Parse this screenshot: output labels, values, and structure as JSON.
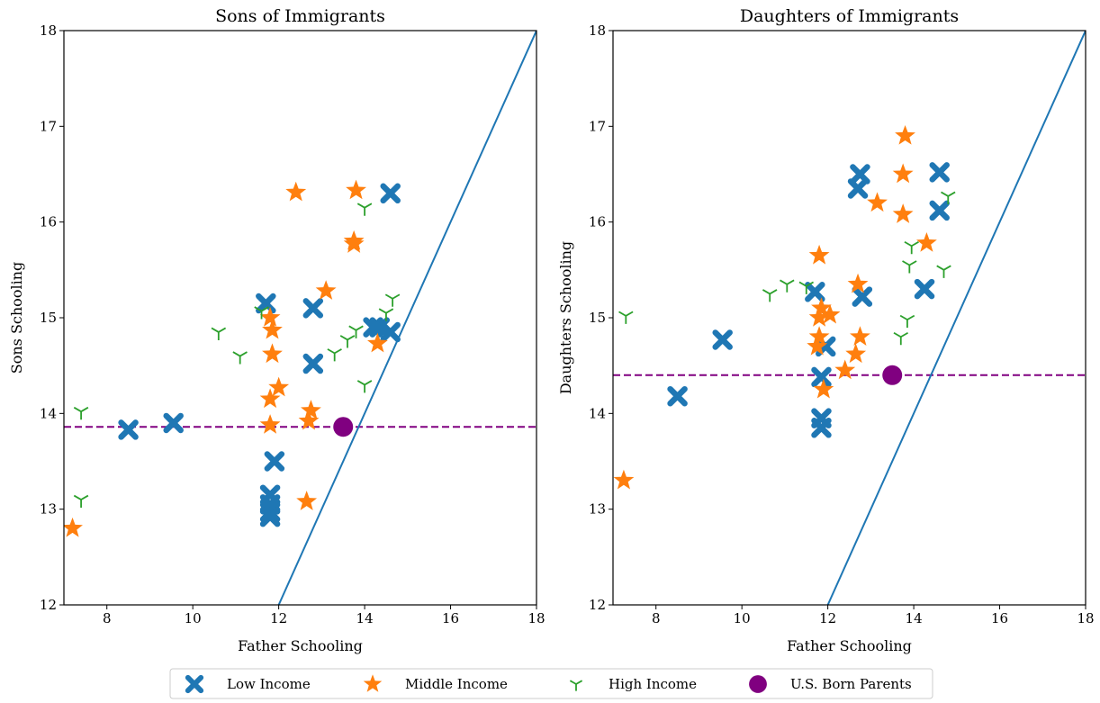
{
  "chart_data": [
    {
      "type": "scatter",
      "title": "Sons of Immigrants",
      "xlabel": "Father Schooling",
      "ylabel": "Sons Schooling",
      "xlim": [
        7,
        18
      ],
      "ylim": [
        12,
        18
      ],
      "xticks": [
        8,
        10,
        12,
        14,
        16,
        18
      ],
      "yticks": [
        12,
        13,
        14,
        15,
        16,
        17,
        18
      ],
      "grid": false,
      "reference_line": {
        "type": "line",
        "x": [
          12,
          18
        ],
        "y": [
          12,
          18
        ],
        "color": "#1f77b4"
      },
      "us_born_mean": {
        "x": 13.5,
        "y": 13.86,
        "color": "#800080"
      },
      "series": [
        {
          "name": "Low Income",
          "marker": "x-icon",
          "color": "#1f77b4",
          "points": [
            [
              8.5,
              13.83
            ],
            [
              9.55,
              13.9
            ],
            [
              11.7,
              15.15
            ],
            [
              11.8,
              13.15
            ],
            [
              11.8,
              13.05
            ],
            [
              11.8,
              12.97
            ],
            [
              11.8,
              12.92
            ],
            [
              11.9,
              13.5
            ],
            [
              12.8,
              15.1
            ],
            [
              12.8,
              14.52
            ],
            [
              14.2,
              14.9
            ],
            [
              14.35,
              14.9
            ],
            [
              14.6,
              14.85
            ],
            [
              14.6,
              16.3
            ]
          ]
        },
        {
          "name": "Middle Income",
          "marker": "star-icon",
          "color": "#ff7f0e",
          "points": [
            [
              7.2,
              12.8
            ],
            [
              11.8,
              15.0
            ],
            [
              11.85,
              14.87
            ],
            [
              11.85,
              14.62
            ],
            [
              11.8,
              14.15
            ],
            [
              11.8,
              13.88
            ],
            [
              12.0,
              14.27
            ],
            [
              12.4,
              16.31
            ],
            [
              12.7,
              13.92
            ],
            [
              12.75,
              14.03
            ],
            [
              12.65,
              13.08
            ],
            [
              13.1,
              15.28
            ],
            [
              13.75,
              15.8
            ],
            [
              13.75,
              15.77
            ],
            [
              13.8,
              16.33
            ],
            [
              14.3,
              14.73
            ]
          ]
        },
        {
          "name": "High Income",
          "marker": "tri-icon",
          "color": "#2ca02c",
          "points": [
            [
              7.4,
              14.02
            ],
            [
              7.4,
              13.1
            ],
            [
              10.6,
              14.85
            ],
            [
              11.1,
              14.6
            ],
            [
              11.6,
              15.07
            ],
            [
              13.3,
              14.63
            ],
            [
              13.6,
              14.77
            ],
            [
              13.8,
              14.87
            ],
            [
              14.0,
              14.3
            ],
            [
              14.0,
              16.15
            ],
            [
              14.5,
              15.05
            ],
            [
              14.65,
              15.2
            ]
          ]
        }
      ]
    },
    {
      "type": "scatter",
      "title": "Daughters of Immigrants",
      "xlabel": "Father Schooling",
      "ylabel": "Daughters Schooling",
      "xlim": [
        7,
        18
      ],
      "ylim": [
        12,
        18
      ],
      "xticks": [
        8,
        10,
        12,
        14,
        16,
        18
      ],
      "yticks": [
        12,
        13,
        14,
        15,
        16,
        17,
        18
      ],
      "grid": false,
      "reference_line": {
        "type": "line",
        "x": [
          12,
          18
        ],
        "y": [
          12,
          18
        ],
        "color": "#1f77b4"
      },
      "us_born_mean": {
        "x": 13.5,
        "y": 14.4,
        "color": "#800080"
      },
      "series": [
        {
          "name": "Low Income",
          "marker": "x-icon",
          "color": "#1f77b4",
          "points": [
            [
              8.5,
              14.18
            ],
            [
              9.55,
              14.77
            ],
            [
              11.7,
              15.27
            ],
            [
              11.85,
              14.38
            ],
            [
              11.85,
              13.95
            ],
            [
              11.85,
              13.85
            ],
            [
              11.95,
              14.7
            ],
            [
              12.7,
              16.35
            ],
            [
              12.75,
              16.5
            ],
            [
              12.8,
              15.22
            ],
            [
              14.25,
              15.3
            ],
            [
              14.6,
              16.52
            ],
            [
              14.6,
              16.12
            ]
          ]
        },
        {
          "name": "Middle Income",
          "marker": "star-icon",
          "color": "#ff7f0e",
          "points": [
            [
              7.25,
              13.3
            ],
            [
              11.8,
              15.65
            ],
            [
              11.8,
              15.0
            ],
            [
              11.85,
              15.1
            ],
            [
              11.8,
              14.8
            ],
            [
              11.75,
              14.7
            ],
            [
              11.9,
              14.25
            ],
            [
              12.05,
              15.03
            ],
            [
              12.4,
              14.45
            ],
            [
              12.65,
              14.62
            ],
            [
              12.7,
              15.35
            ],
            [
              12.75,
              14.8
            ],
            [
              13.15,
              16.2
            ],
            [
              13.75,
              16.08
            ],
            [
              13.75,
              16.5
            ],
            [
              13.8,
              16.9
            ],
            [
              14.3,
              15.78
            ]
          ]
        },
        {
          "name": "High Income",
          "marker": "tri-icon",
          "color": "#2ca02c",
          "points": [
            [
              7.3,
              15.02
            ],
            [
              10.65,
              15.25
            ],
            [
              11.05,
              15.35
            ],
            [
              11.5,
              15.33
            ],
            [
              13.7,
              14.8
            ],
            [
              13.85,
              14.98
            ],
            [
              13.9,
              15.55
            ],
            [
              13.95,
              15.75
            ],
            [
              14.7,
              15.5
            ],
            [
              14.8,
              16.27
            ]
          ]
        }
      ]
    }
  ],
  "legend": {
    "placement": "bottom-center",
    "items": [
      {
        "label": "Low Income",
        "marker": "x-icon",
        "color": "#1f77b4"
      },
      {
        "label": "Middle Income",
        "marker": "star-icon",
        "color": "#ff7f0e"
      },
      {
        "label": "High Income",
        "marker": "tri-icon",
        "color": "#2ca02c"
      },
      {
        "label": "U.S. Born Parents",
        "marker": "circle-icon",
        "color": "#800080"
      }
    ]
  }
}
